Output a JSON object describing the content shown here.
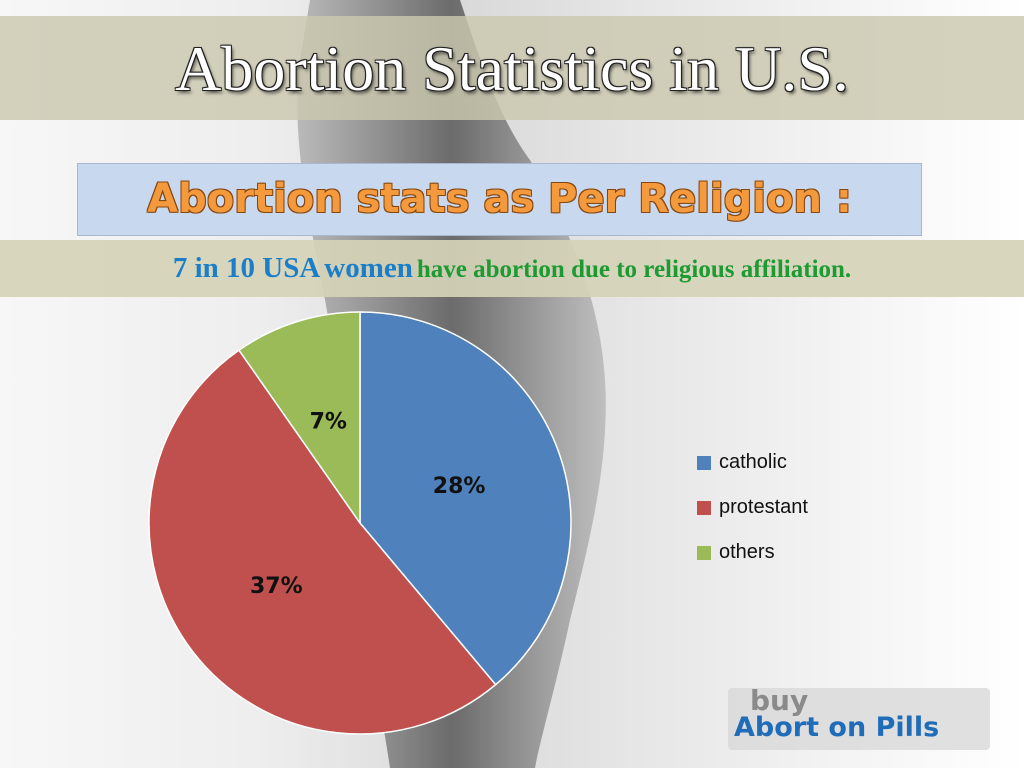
{
  "header": {
    "title": "Abortion Statistics in U.S.",
    "subtitle": "Abortion stats as Per Religion :"
  },
  "statement": {
    "count": "7 in 10 USA",
    "subject": "women",
    "rest": "have abortion due to religious affiliation."
  },
  "logo": {
    "top": "buy",
    "bottom": "Abort on Pills"
  },
  "colors": {
    "catholic": "#4f81bd",
    "protestant": "#c0504d",
    "others": "#9bbb59",
    "subtitle_text": "#f59a3c",
    "statement_blue": "#1a7fc8",
    "statement_green": "#1d9a32"
  },
  "chart_data": {
    "type": "pie",
    "series": [
      {
        "name": "catholic",
        "value": 28,
        "label": "28%",
        "color": "#4f81bd"
      },
      {
        "name": "protestant",
        "value": 37,
        "label": "37%",
        "color": "#c0504d"
      },
      {
        "name": "others",
        "value": 7,
        "label": "7%",
        "color": "#9bbb59"
      }
    ],
    "legend": "right"
  }
}
